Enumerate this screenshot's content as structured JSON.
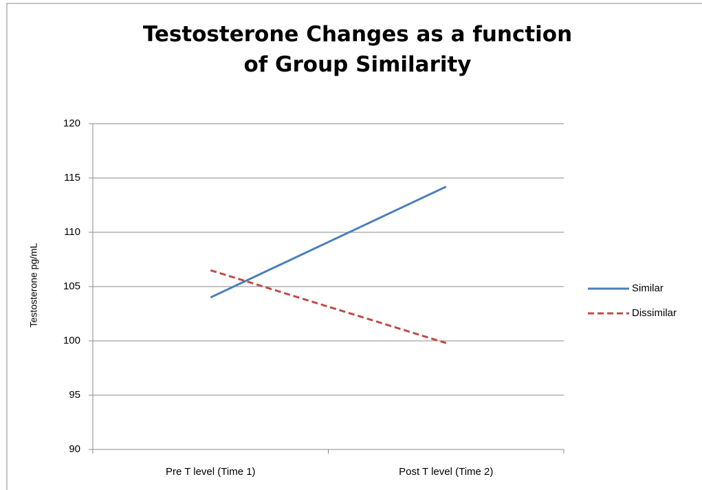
{
  "chart_data": {
    "type": "line",
    "title": "Testosterone Changes as a function of Group Similarity",
    "y_label": "Testosterone pg/mL",
    "categories": [
      "Pre T level (Time 1)",
      "Post T level (Time 2)"
    ],
    "series": [
      {
        "name": "Similar",
        "color": "#4a7ebb",
        "dash": false,
        "values": [
          104.0,
          114.2
        ]
      },
      {
        "name": "Dissimilar",
        "color": "#be4b48",
        "dash": true,
        "values": [
          106.5,
          99.8
        ]
      }
    ],
    "ylim": [
      90,
      120
    ],
    "yticks": [
      90,
      95,
      100,
      105,
      110,
      115,
      120
    ],
    "grid": true,
    "legend": "right"
  }
}
